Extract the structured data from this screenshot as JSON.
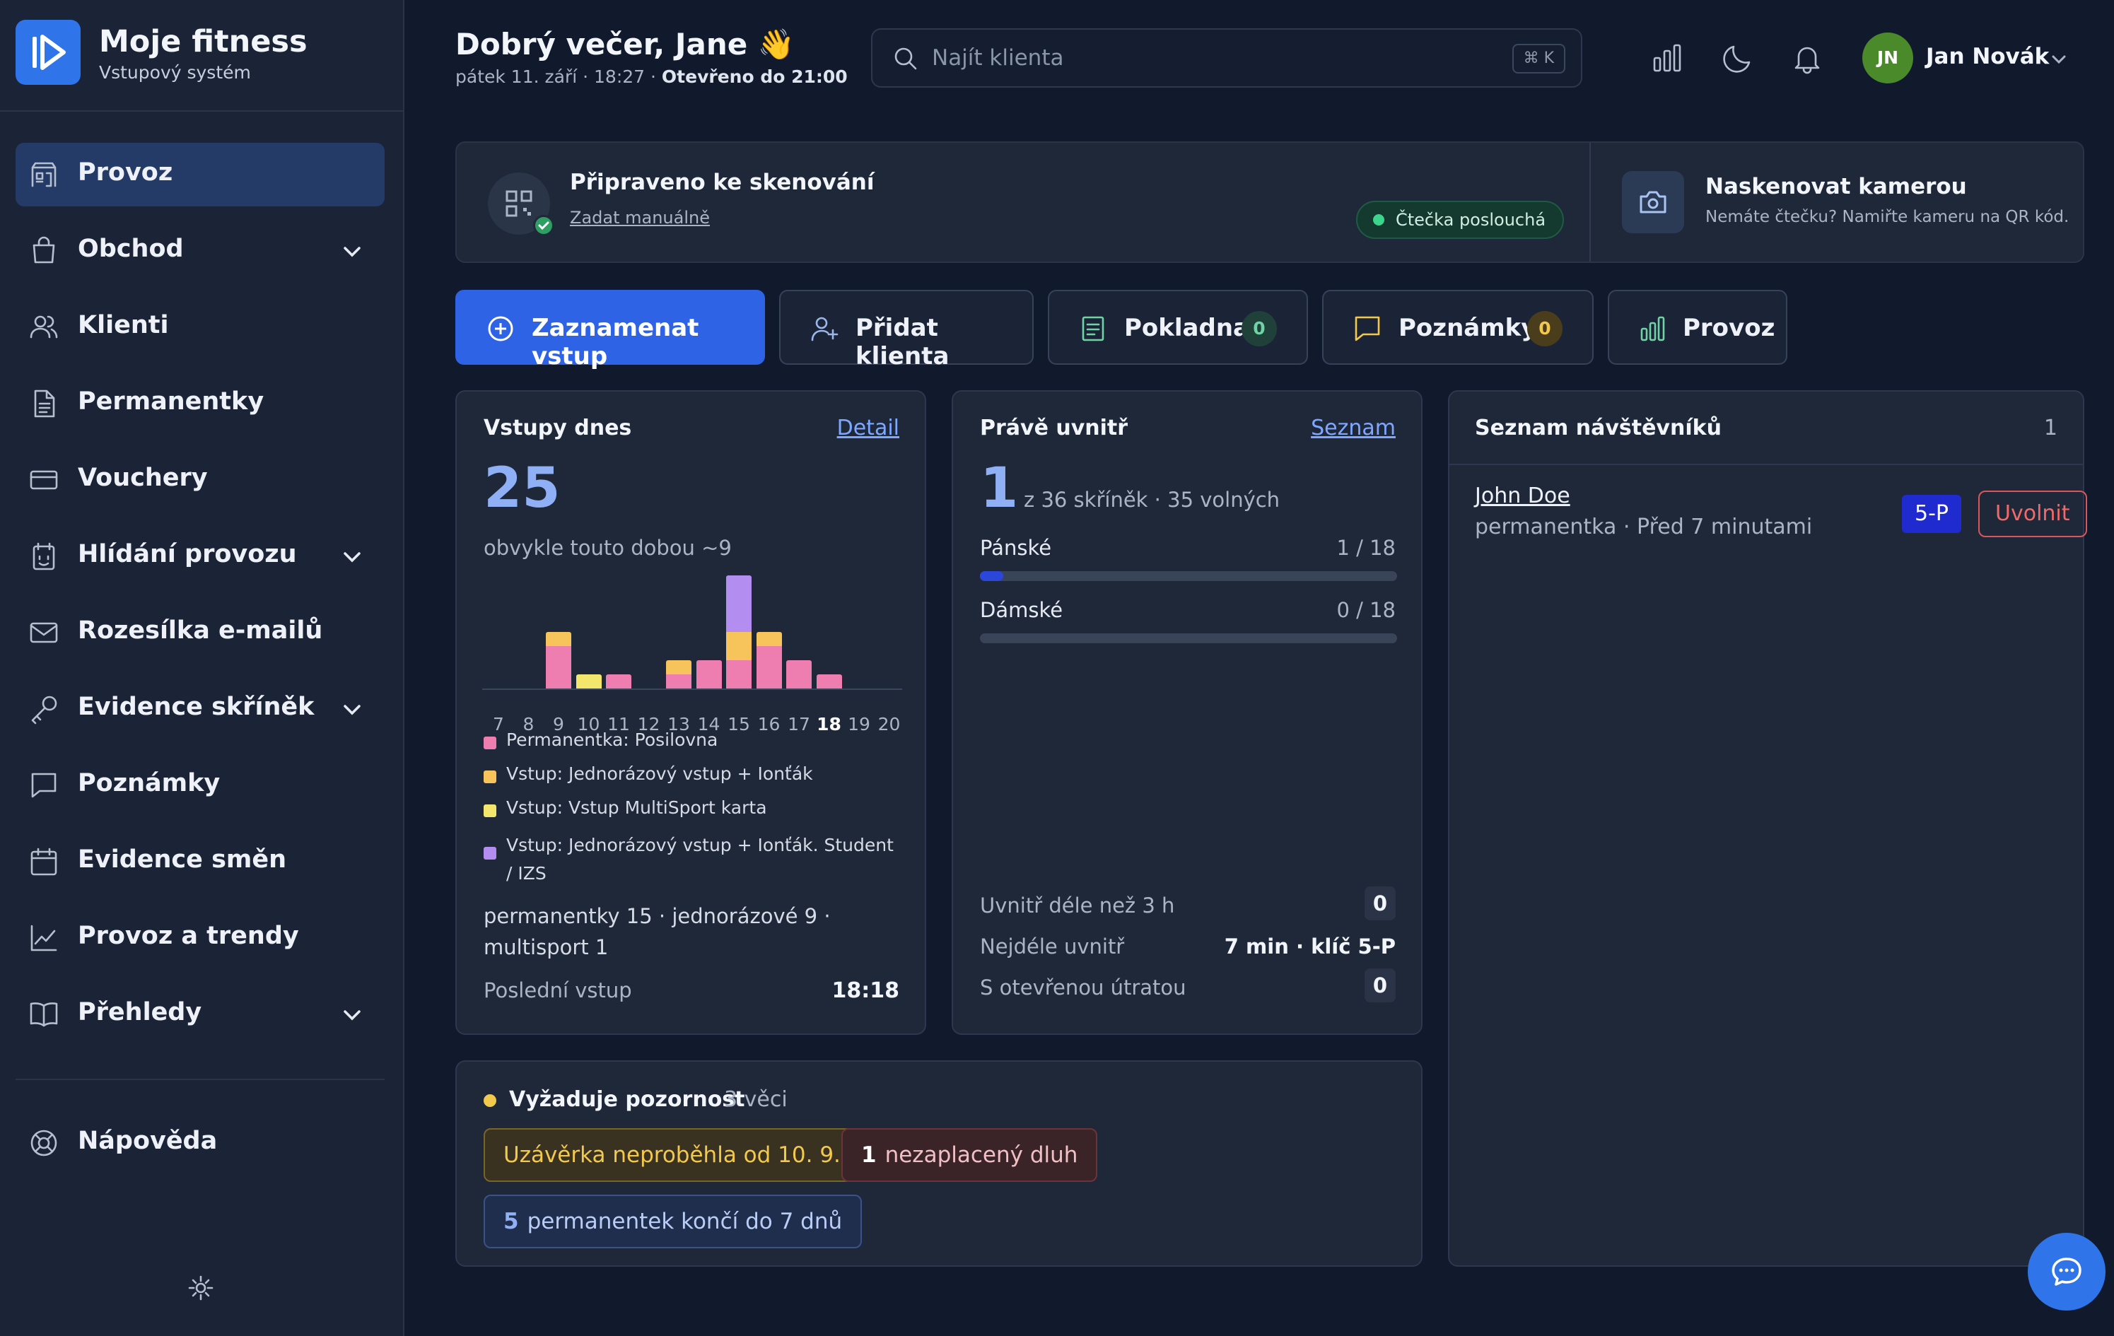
{
  "brand": {
    "name": "Moje fitness",
    "subtitle": "Vstupový systém"
  },
  "sidebar": {
    "items": [
      {
        "label": "Provoz",
        "icon": "building-icon",
        "active": true,
        "expandable": false
      },
      {
        "label": "Obchod",
        "icon": "shopping-bag-icon",
        "expandable": true
      },
      {
        "label": "Klienti",
        "icon": "users-icon",
        "expandable": false
      },
      {
        "label": "Permanentky",
        "icon": "document-icon",
        "expandable": false
      },
      {
        "label": "Vouchery",
        "icon": "card-icon",
        "expandable": false
      },
      {
        "label": "Hlídání provozu",
        "icon": "monitor-icon",
        "expandable": true
      },
      {
        "label": "Rozesílka e-mailů",
        "icon": "mail-icon",
        "expandable": false
      },
      {
        "label": "Evidence skříněk",
        "icon": "key-icon",
        "expandable": true
      },
      {
        "label": "Poznámky",
        "icon": "chat-icon",
        "expandable": false
      },
      {
        "label": "Evidence směn",
        "icon": "calendar-icon",
        "expandable": false
      },
      {
        "label": "Provoz a trendy",
        "icon": "chart-line-icon",
        "expandable": false
      },
      {
        "label": "Přehledy",
        "icon": "book-icon",
        "expandable": true
      }
    ],
    "help": "Nápověda"
  },
  "header": {
    "greeting": "Dobrý večer, Jane 👋",
    "date": "pátek 11. září · 18:27 ·",
    "open_until": "Otevřeno do 21:00",
    "search_placeholder": "Najít klienta",
    "search_shortcut": "⌘ K",
    "user_initials": "JN",
    "user_name": "Jan Novák"
  },
  "scan": {
    "title": "Připraveno ke skenování",
    "manual_link": "Zadat manuálně",
    "reader_status": "Čtečka poslouchá",
    "camera_title": "Naskenovat kamerou",
    "camera_sub": "Nemáte čtečku? Namiřte kameru na QR kód."
  },
  "actions": {
    "entry": "Zaznamenat vstup",
    "add_client": "Přidat klienta",
    "cash": "Pokladna",
    "cash_count": "0",
    "notes": "Poznámky",
    "notes_count": "0",
    "ops": "Provoz"
  },
  "entries": {
    "title": "Vstupy dnes",
    "link": "Detail",
    "count": "25",
    "usual": "obvykle touto dobou ~9",
    "summary": "permanentky 15 · jednorázové 9 · multisport 1",
    "last_label": "Poslední vstup",
    "last_value": "18:18"
  },
  "chart_data": {
    "type": "bar",
    "stacked": true,
    "categories": [
      "7",
      "8",
      "9",
      "10",
      "11",
      "12",
      "13",
      "14",
      "15",
      "16",
      "17",
      "18",
      "19",
      "20"
    ],
    "highlight": "18",
    "series": [
      {
        "name": "Permanentka: Posilovna",
        "color": "#ef7eb0",
        "values": [
          0,
          0,
          3,
          0,
          1,
          0,
          1,
          2,
          2,
          3,
          2,
          1,
          0,
          0
        ]
      },
      {
        "name": "Vstup: Jednorázový vstup + Ionťák",
        "color": "#f6c45a",
        "values": [
          0,
          0,
          1,
          0,
          0,
          0,
          1,
          0,
          2,
          1,
          0,
          0,
          0,
          0
        ]
      },
      {
        "name": "Vstup: Vstup MultiSport karta",
        "color": "#f3e66c",
        "values": [
          0,
          0,
          0,
          1,
          0,
          0,
          0,
          0,
          0,
          0,
          0,
          0,
          0,
          0
        ]
      },
      {
        "name": "Vstup: Jednorázový vstup + Ionťák. Student / IZS",
        "color": "#b48df0",
        "values": [
          0,
          0,
          0,
          0,
          0,
          0,
          0,
          0,
          4,
          0,
          0,
          0,
          0,
          0
        ]
      }
    ],
    "ylim": [
      0,
      8
    ]
  },
  "inside": {
    "title": "Právě uvnitř",
    "link": "Seznam",
    "count": "1",
    "lockers": "z 36 skříněk · 35 volných",
    "men_label": "Pánské",
    "men_value": "1 / 18",
    "men_fraction": 0.0556,
    "women_label": "Dámské",
    "women_value": "0 / 18",
    "women_fraction": 0,
    "over3_label": "Uvnitř déle než 3 h",
    "over3_value": "0",
    "longest_label": "Nejdéle uvnitř",
    "longest_value": "7 min · klíč 5-P",
    "open_tab_label": "S otevřenou útratou",
    "open_tab_value": "0"
  },
  "visitors": {
    "title": "Seznam návštěvníků",
    "count": "1",
    "items": [
      {
        "name": "John Doe",
        "meta": "permanentka · Před 7 minutami",
        "locker": "5-P",
        "action": "Uvolnit"
      }
    ]
  },
  "attention": {
    "title": "Vyžaduje pozornost",
    "count": "3 věci",
    "closing": "Uzávěrka neproběhla od 10. 9.",
    "debt_count": "1",
    "debt_label": "nezaplacený dluh",
    "expiring_count": "5",
    "expiring_label": "permanentek končí do 7 dnů"
  },
  "colors": {
    "accent": "#2f63e6",
    "active_nav": "#243a67",
    "success": "#3bd68b",
    "warning": "#f2c94c",
    "danger": "#f06a6a"
  }
}
